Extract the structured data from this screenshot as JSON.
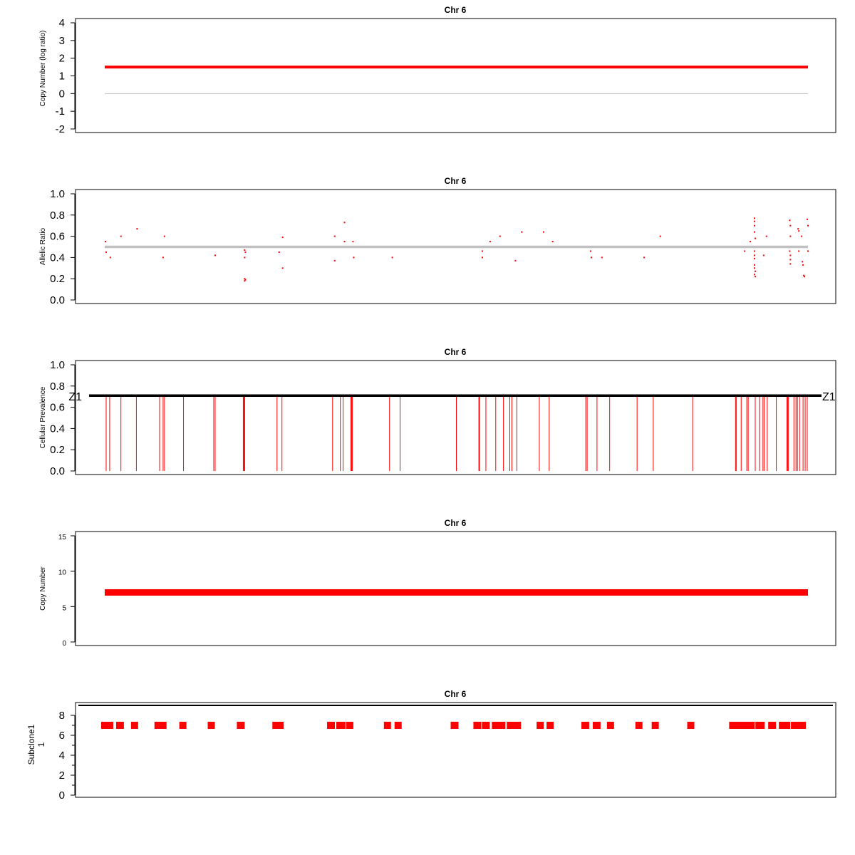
{
  "colors": {
    "mark": "#ff0000",
    "reference": "#c0c0c0",
    "frame": "#000000"
  },
  "chart_data": [
    {
      "type": "line",
      "title": "Chr 6",
      "ylabel": "Copy Number (log ratio)",
      "ylim": [
        -2,
        4
      ],
      "yticks": [
        "-2",
        "-1",
        "0",
        "1",
        "2",
        "3",
        "4"
      ],
      "reference_line": 0,
      "series": [
        {
          "x": [
            0,
            1
          ],
          "y": [
            1.5,
            1.5
          ]
        }
      ]
    },
    {
      "type": "scatter",
      "title": "Chr 6",
      "ylabel": "Allelic Ratio",
      "ylim": [
        0,
        1
      ],
      "yticks": [
        "0.0",
        "0.2",
        "0.4",
        "0.6",
        "0.8",
        "1.0"
      ],
      "reference_line": 0.5,
      "points": [
        [
          0.001,
          0.55
        ],
        [
          0.002,
          0.45
        ],
        [
          0.008,
          0.4
        ],
        [
          0.023,
          0.6
        ],
        [
          0.046,
          0.67
        ],
        [
          0.083,
          0.4
        ],
        [
          0.085,
          0.6
        ],
        [
          0.157,
          0.42
        ],
        [
          0.199,
          0.47
        ],
        [
          0.2,
          0.45
        ],
        [
          0.199,
          0.4
        ],
        [
          0.199,
          0.2
        ],
        [
          0.199,
          0.18
        ],
        [
          0.2,
          0.19
        ],
        [
          0.248,
          0.45
        ],
        [
          0.253,
          0.59
        ],
        [
          0.253,
          0.3
        ],
        [
          0.327,
          0.6
        ],
        [
          0.327,
          0.37
        ],
        [
          0.341,
          0.73
        ],
        [
          0.341,
          0.55
        ],
        [
          0.353,
          0.55
        ],
        [
          0.354,
          0.4
        ],
        [
          0.409,
          0.4
        ],
        [
          0.537,
          0.46
        ],
        [
          0.537,
          0.4
        ],
        [
          0.548,
          0.55
        ],
        [
          0.562,
          0.6
        ],
        [
          0.584,
          0.37
        ],
        [
          0.593,
          0.64
        ],
        [
          0.624,
          0.64
        ],
        [
          0.637,
          0.55
        ],
        [
          0.691,
          0.46
        ],
        [
          0.692,
          0.4
        ],
        [
          0.707,
          0.4
        ],
        [
          0.767,
          0.4
        ],
        [
          0.79,
          0.6
        ],
        [
          0.91,
          0.46
        ],
        [
          0.918,
          0.55
        ],
        [
          0.924,
          0.77
        ],
        [
          0.924,
          0.74
        ],
        [
          0.924,
          0.7
        ],
        [
          0.924,
          0.64
        ],
        [
          0.925,
          0.58
        ],
        [
          0.924,
          0.46
        ],
        [
          0.924,
          0.42
        ],
        [
          0.924,
          0.39
        ],
        [
          0.924,
          0.33
        ],
        [
          0.924,
          0.3
        ],
        [
          0.925,
          0.27
        ],
        [
          0.924,
          0.24
        ],
        [
          0.925,
          0.22
        ],
        [
          0.937,
          0.42
        ],
        [
          0.941,
          0.6
        ],
        [
          0.974,
          0.75
        ],
        [
          0.975,
          0.7
        ],
        [
          0.975,
          0.6
        ],
        [
          0.974,
          0.46
        ],
        [
          0.975,
          0.42
        ],
        [
          0.975,
          0.38
        ],
        [
          0.975,
          0.34
        ],
        [
          0.986,
          0.67
        ],
        [
          0.987,
          0.65
        ],
        [
          0.987,
          0.46
        ],
        [
          0.991,
          0.6
        ],
        [
          0.992,
          0.36
        ],
        [
          0.993,
          0.33
        ],
        [
          0.994,
          0.23
        ],
        [
          0.995,
          0.22
        ],
        [
          0.999,
          0.76
        ],
        [
          1.0,
          0.7
        ],
        [
          1.0,
          0.46
        ]
      ]
    },
    {
      "type": "bar",
      "title": "Chr 6",
      "ylabel": "Cellular Prevalence",
      "ylim": [
        0,
        1
      ],
      "yticks": [
        "0.0",
        "0.2",
        "0.4",
        "0.6",
        "0.8",
        "1.0"
      ],
      "annotation": {
        "label": "Z1",
        "y": 0.71
      },
      "bar_height": 0.71,
      "bars": [
        0.002,
        0.007,
        0.023,
        0.045,
        0.078,
        0.083,
        0.085,
        0.112,
        0.155,
        0.157,
        0.197,
        0.198,
        0.199,
        0.245,
        0.252,
        0.324,
        0.335,
        0.339,
        0.35,
        0.351,
        0.352,
        0.405,
        0.42,
        0.5,
        0.532,
        0.533,
        0.542,
        0.556,
        0.567,
        0.576,
        0.579,
        0.586,
        0.618,
        0.632,
        0.684,
        0.686,
        0.7,
        0.718,
        0.757,
        0.78,
        0.836,
        0.897,
        0.898,
        0.905,
        0.913,
        0.915,
        0.925,
        0.931,
        0.936,
        0.938,
        0.942,
        0.955,
        0.97,
        0.971,
        0.972,
        0.98,
        0.983,
        0.985,
        0.988,
        0.993,
        0.996,
        0.999
      ]
    },
    {
      "type": "line",
      "title": "Chr 6",
      "ylabel": "Copy Number",
      "ylim": [
        0,
        15
      ],
      "yticks": [
        "0",
        "5",
        "10",
        "15"
      ],
      "series": [
        {
          "x": [
            0,
            1
          ],
          "y": [
            7,
            7
          ]
        }
      ]
    },
    {
      "type": "bar",
      "title": "Chr 6",
      "ylabel": "Subclone1\n1",
      "ylabel_lines": [
        "Subclone1",
        "1"
      ],
      "ylim": [
        0,
        9
      ],
      "yticks": [
        "0",
        "2",
        "4",
        "6",
        "8"
      ],
      "reference_line": 9,
      "block_y": 7,
      "blocks": [
        [
          0.0,
          0.017
        ],
        [
          0.021,
          0.032
        ],
        [
          0.042,
          0.052
        ],
        [
          0.075,
          0.092
        ],
        [
          0.11,
          0.12
        ],
        [
          0.15,
          0.16
        ],
        [
          0.191,
          0.202
        ],
        [
          0.241,
          0.257
        ],
        [
          0.318,
          0.329
        ],
        [
          0.331,
          0.344
        ],
        [
          0.345,
          0.355
        ],
        [
          0.398,
          0.408
        ],
        [
          0.413,
          0.423
        ],
        [
          0.492,
          0.503
        ],
        [
          0.524,
          0.535
        ],
        [
          0.536,
          0.547
        ],
        [
          0.55,
          0.569
        ],
        [
          0.571,
          0.591
        ],
        [
          0.613,
          0.623
        ],
        [
          0.627,
          0.637
        ],
        [
          0.676,
          0.687
        ],
        [
          0.692,
          0.703
        ],
        [
          0.712,
          0.722
        ],
        [
          0.752,
          0.762
        ],
        [
          0.775,
          0.785
        ],
        [
          0.825,
          0.835
        ],
        [
          0.884,
          0.92
        ],
        [
          0.921,
          0.934
        ],
        [
          0.939,
          0.95
        ],
        [
          0.954,
          0.97
        ],
        [
          0.971,
          0.992
        ]
      ]
    }
  ]
}
